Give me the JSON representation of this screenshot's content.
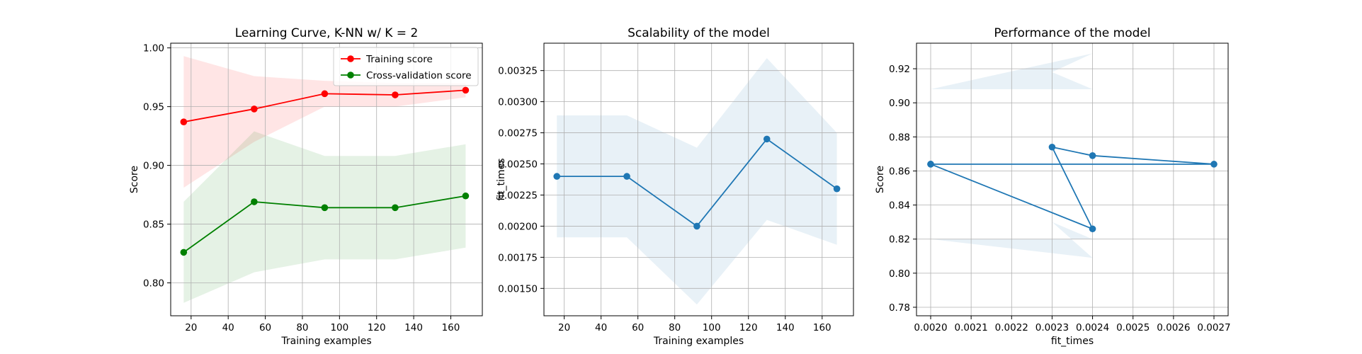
{
  "chart_data": [
    {
      "type": "line",
      "title": "Learning Curve, K-NN w/ K = 2",
      "xlabel": "Training examples",
      "ylabel": "Score",
      "xlim": [
        9,
        177
      ],
      "ylim": [
        0.772,
        1.004
      ],
      "xticks": [
        20,
        40,
        60,
        80,
        100,
        120,
        140,
        160
      ],
      "yticks": [
        0.8,
        0.85,
        0.9,
        0.95,
        1.0
      ],
      "ytick_decimals": 2,
      "grid": true,
      "legend": "top-right",
      "x": [
        16,
        54,
        92,
        130,
        168
      ],
      "series": [
        {
          "name": "Training score",
          "color": "#ff0000",
          "band_color": "#ff0000",
          "values": [
            0.937,
            0.948,
            0.961,
            0.96,
            0.964
          ],
          "lower": [
            0.881,
            0.92,
            0.95,
            0.95,
            0.958
          ],
          "upper": [
            0.993,
            0.976,
            0.972,
            0.97,
            0.97
          ]
        },
        {
          "name": "Cross-validation score",
          "color": "#008000",
          "band_color": "#008000",
          "values": [
            0.826,
            0.869,
            0.864,
            0.864,
            0.874
          ],
          "lower": [
            0.783,
            0.809,
            0.82,
            0.82,
            0.83
          ],
          "upper": [
            0.869,
            0.929,
            0.908,
            0.908,
            0.918
          ]
        }
      ]
    },
    {
      "type": "line",
      "title": "Scalability of the model",
      "xlabel": "Training examples",
      "ylabel": "fit_times",
      "xlim": [
        9,
        177
      ],
      "ylim": [
        0.00128,
        0.00347
      ],
      "xticks": [
        20,
        40,
        60,
        80,
        100,
        120,
        140,
        160
      ],
      "yticks": [
        0.0015,
        0.00175,
        0.002,
        0.00225,
        0.0025,
        0.00275,
        0.003,
        0.00325
      ],
      "ytick_decimals": 5,
      "grid": true,
      "x": [
        16,
        54,
        92,
        130,
        168
      ],
      "series": [
        {
          "color": "#1f77b4",
          "band_color": "#1f77b4",
          "values": [
            0.0024,
            0.0024,
            0.002,
            0.0027,
            0.0023
          ],
          "lower": [
            0.00191,
            0.00191,
            0.00137,
            0.00205,
            0.00185
          ],
          "upper": [
            0.00289,
            0.00289,
            0.00263,
            0.00335,
            0.00275
          ]
        }
      ]
    },
    {
      "type": "line",
      "title": "Performance of the model",
      "xlabel": "fit_times",
      "ylabel": "Score",
      "xlim": [
        0.001965,
        0.002735
      ],
      "ylim": [
        0.775,
        0.935
      ],
      "xticks": [
        0.002,
        0.0021,
        0.0022,
        0.0023,
        0.0024,
        0.0025,
        0.0026,
        0.0027
      ],
      "xtick_decimals": 4,
      "yticks": [
        0.78,
        0.8,
        0.82,
        0.84,
        0.86,
        0.88,
        0.9,
        0.92
      ],
      "ytick_decimals": 2,
      "grid": true,
      "x": [
        0.002,
        0.0024,
        0.0023,
        0.0024,
        0.0027,
        0.002
      ],
      "series": [
        {
          "color": "#1f77b4",
          "band_color": "#1f77b4",
          "values": [
            0.864,
            0.826,
            0.874,
            0.869,
            0.864,
            0.864
          ],
          "lower": [
            0.82,
            0.809,
            0.83,
            0.82,
            0.82,
            0.82
          ],
          "upper": [
            0.908,
            0.929,
            0.918,
            0.908,
            0.908,
            0.908
          ]
        }
      ]
    }
  ]
}
